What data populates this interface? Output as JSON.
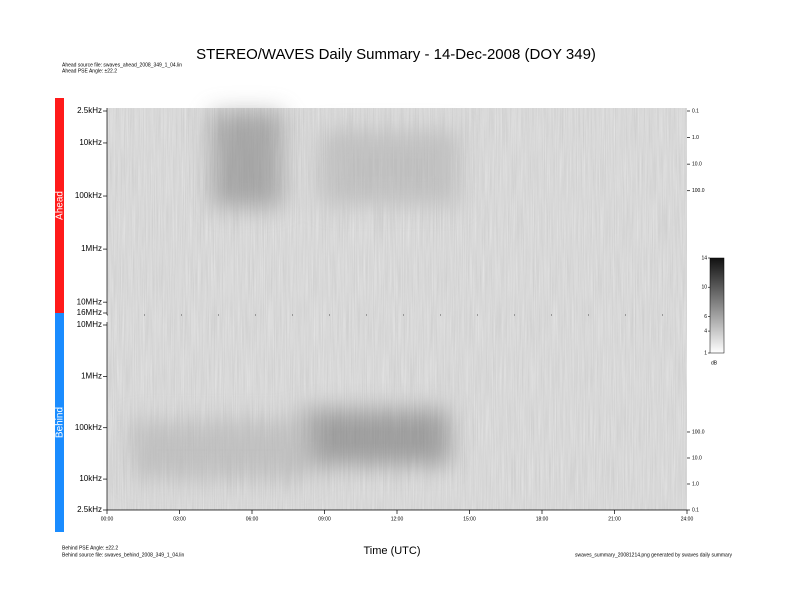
{
  "chart_data": {
    "type": "spectrogram",
    "title": "STEREO/WAVES Daily Summary - 14-Dec-2008 (DOY 349)",
    "xlabel": "Time (UTC)",
    "xlim": [
      0,
      24
    ],
    "xticks": [
      {
        "value": 0,
        "label": "00:00"
      },
      {
        "value": 3,
        "label": "03:00"
      },
      {
        "value": 6,
        "label": "06:00"
      },
      {
        "value": 9,
        "label": "09:00"
      },
      {
        "value": 12,
        "label": "12:00"
      },
      {
        "value": 15,
        "label": "15:00"
      },
      {
        "value": 18,
        "label": "18:00"
      },
      {
        "value": 21,
        "label": "21:00"
      },
      {
        "value": 24,
        "label": "24:00"
      }
    ],
    "log_scale": true,
    "panels": [
      {
        "name": "Ahead",
        "color": "#ff1a1a",
        "notes": [
          "Ahead source file: swaves_ahead_2008_349_1_04.lin",
          "Ahead PSE Angle: ±22.2"
        ],
        "ylim": [
          2500,
          16000000
        ],
        "yticks": [
          {
            "value": 2500,
            "label": "2.5kHz"
          },
          {
            "value": 10000,
            "label": "10kHz"
          },
          {
            "value": 100000,
            "label": "100kHz"
          },
          {
            "value": 1000000,
            "label": "1MHz"
          },
          {
            "value": 10000000,
            "label": "10MHz"
          },
          {
            "value": 16000000,
            "label": "16MHz"
          }
        ],
        "y2lim": [
          0.1,
          4000000
        ],
        "y2ticks": [
          0.1,
          {
            "value": 1,
            "label": "1.0"
          },
          {
            "value": 10,
            "label": "10.0"
          },
          {
            "value": 100,
            "label": "100.0"
          }
        ]
      },
      {
        "name": "Behind",
        "color": "#1a8cff",
        "notes": [
          "Behind PSE Angle: ±22.2",
          "Behind source file: swaves_behind_2008_349_1_04.lin"
        ],
        "ylim": [
          2500,
          10000000
        ],
        "yticks": [
          {
            "value": 10000000,
            "label": "10MHz"
          },
          {
            "value": 1000000,
            "label": "1MHz"
          },
          {
            "value": 100000,
            "label": "100kHz"
          },
          {
            "value": 10000,
            "label": "10kHz"
          },
          {
            "value": 2500,
            "label": "2.5kHz"
          }
        ],
        "y2lim": [
          0.1,
          1300000
        ],
        "y2ticks": [
          {
            "value": 100,
            "label": "100.0"
          },
          {
            "value": 10,
            "label": "10.0"
          },
          {
            "value": 1,
            "label": "1.0"
          },
          0.1
        ]
      }
    ],
    "colorbar": {
      "label": "dB",
      "clim": [
        1,
        14
      ],
      "ticks": [
        14,
        10,
        6,
        4,
        1
      ]
    },
    "footer": "swaves_summary_20081214.png generated by swaves daily summary"
  }
}
